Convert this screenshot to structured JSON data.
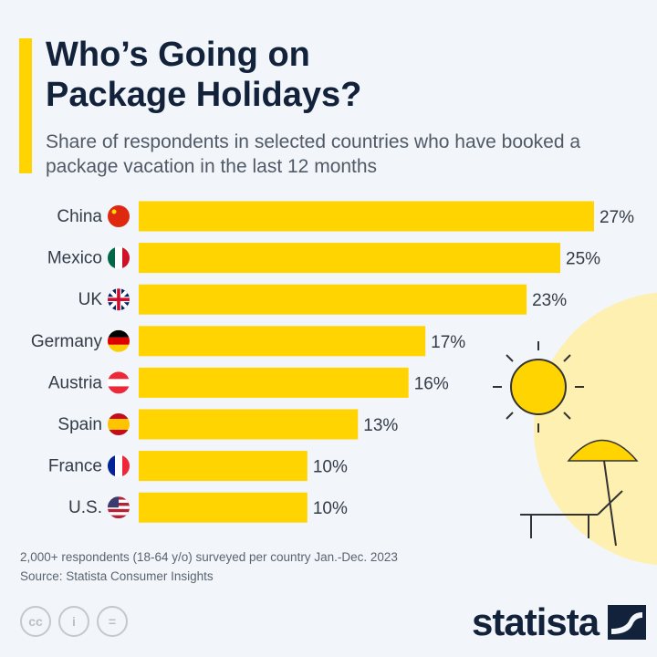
{
  "title": "Who’s Going on Package Holidays?",
  "subtitle": "Share of respondents in selected countries who have booked a package vacation in the last 12 months",
  "colors": {
    "bar": "#ffd400",
    "text": "#13223b",
    "background": "#f2f5fa"
  },
  "chart_data": {
    "type": "bar",
    "orientation": "horizontal",
    "categories": [
      "China",
      "Mexico",
      "UK",
      "Germany",
      "Austria",
      "Spain",
      "France",
      "U.S."
    ],
    "values": [
      27,
      25,
      23,
      17,
      16,
      13,
      10,
      10
    ],
    "value_labels": [
      "27%",
      "25%",
      "23%",
      "17%",
      "16%",
      "13%",
      "10%",
      "10%"
    ],
    "flags": [
      "china-flag",
      "mexico-flag",
      "uk-flag",
      "germany-flag",
      "austria-flag",
      "spain-flag",
      "france-flag",
      "us-flag"
    ],
    "unit": "%",
    "xlim": [
      0,
      27
    ],
    "grid": false
  },
  "notes": {
    "line1": "2,000+ respondents (18-64 y/o) surveyed per country Jan.-Dec. 2023",
    "line2": "Source: Statista Consumer Insights"
  },
  "footer": {
    "cc": "cc",
    "by": "i",
    "nd": "=",
    "logo": "statista"
  }
}
